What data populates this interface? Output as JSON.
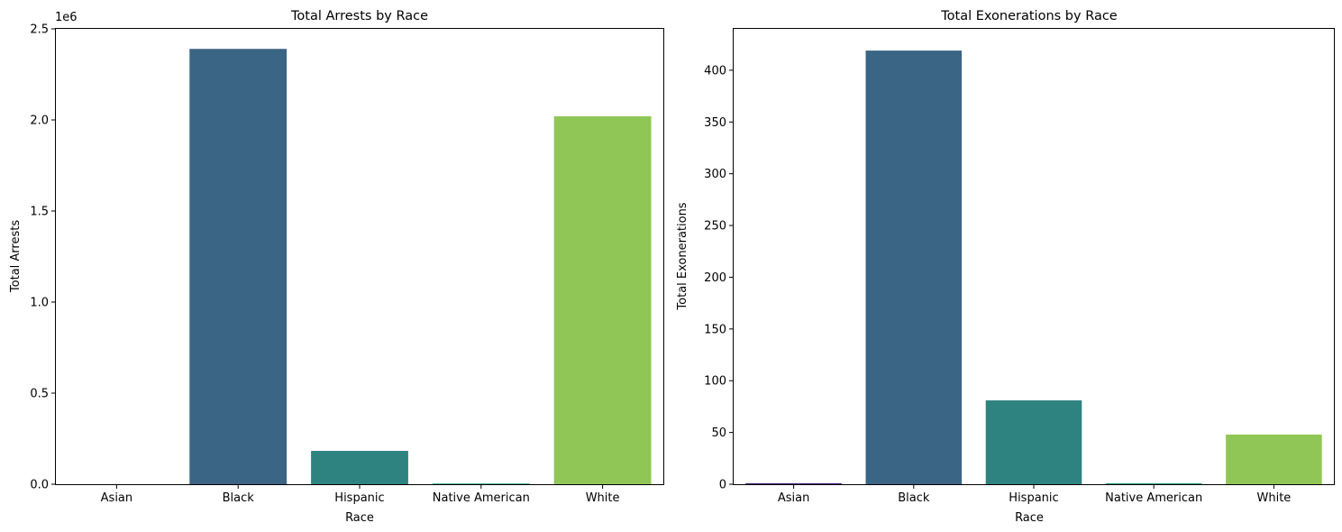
{
  "chart_data": [
    {
      "type": "bar",
      "title": "Total Arrests by Race",
      "xlabel": "Race",
      "ylabel": "Total Arrests",
      "offset_text": "1e6",
      "categories": [
        "Asian",
        "Black",
        "Hispanic",
        "Native American",
        "White"
      ],
      "values": [
        0,
        2390000,
        183000,
        4000,
        2020000
      ],
      "ylim": [
        0,
        2500000
      ],
      "yticks": [
        0,
        500000,
        1000000,
        1500000,
        2000000,
        2500000
      ],
      "ytick_labels": [
        "0.0",
        "0.5",
        "1.0",
        "1.5",
        "2.0",
        "2.5"
      ],
      "colors": [
        "#472d7b",
        "#3b6584",
        "#2e8380",
        "#2ca67a",
        "#90c655"
      ],
      "grid": false
    },
    {
      "type": "bar",
      "title": "Total Exonerations by Race",
      "xlabel": "Race",
      "ylabel": "Total Exonerations",
      "offset_text": "",
      "categories": [
        "Asian",
        "Black",
        "Hispanic",
        "Native American",
        "White"
      ],
      "values": [
        1,
        419,
        81,
        1,
        48
      ],
      "ylim": [
        0,
        440
      ],
      "yticks": [
        0,
        50,
        100,
        150,
        200,
        250,
        300,
        350,
        400
      ],
      "ytick_labels": [
        "0",
        "50",
        "100",
        "150",
        "200",
        "250",
        "300",
        "350",
        "400"
      ],
      "colors": [
        "#472d7b",
        "#3b6584",
        "#2e8380",
        "#2ca67a",
        "#90c655"
      ],
      "grid": false
    }
  ]
}
